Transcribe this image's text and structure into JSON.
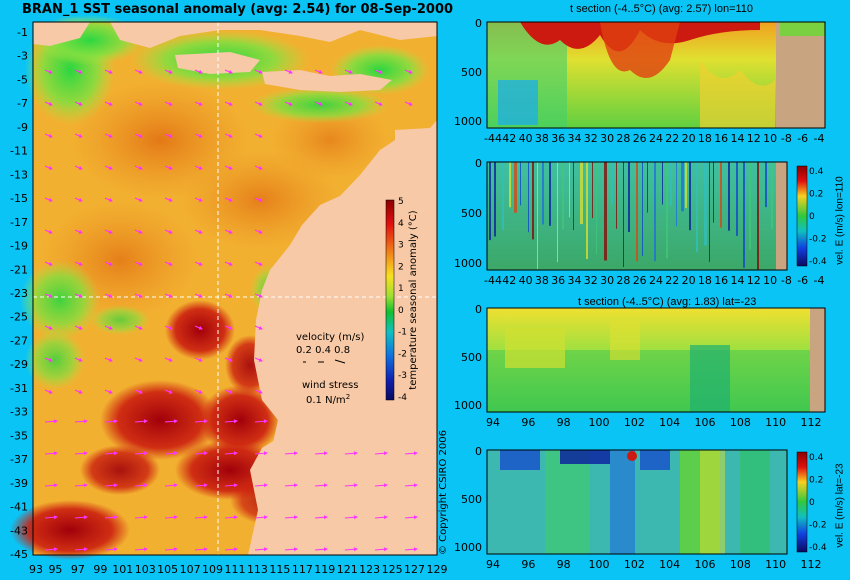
{
  "colors": {
    "background": "#0ac4f5",
    "land": "#f7c9a6",
    "land_section": "#c8a580",
    "arrows": "#ff33ff"
  },
  "chart_data": [
    {
      "type": "heatmap",
      "title": "BRAN_1  SST seasonal anomaly  (avg: 2.54) for 08-Sep-2000",
      "xticks": [
        "93",
        "95",
        "97",
        "99",
        "101",
        "103",
        "105",
        "107",
        "109",
        "111",
        "113",
        "115",
        "117",
        "119",
        "121",
        "123",
        "125",
        "127",
        "129"
      ],
      "yticks": [
        "-1",
        "-3",
        "-5",
        "-7",
        "-9",
        "-11",
        "-13",
        "-15",
        "-17",
        "-19",
        "-21",
        "-23",
        "-25",
        "-27",
        "-29",
        "-31",
        "-33",
        "-35",
        "-37",
        "-39",
        "-41",
        "-43",
        "-45"
      ],
      "xlim": [
        93,
        130
      ],
      "ylim": [
        -45,
        0
      ],
      "colorbar": {
        "label": "temperature seasonal anomaly (°C)",
        "ticks": [
          "5",
          "4",
          "3",
          "2",
          "1",
          "0",
          "-1",
          "-2",
          "-3",
          "-4"
        ],
        "range": [
          -4,
          5
        ]
      },
      "velocity_legend": {
        "title": "velocity (m/s)",
        "values": "0.2 0.4 0.8"
      },
      "wind_legend": {
        "title": "wind stress",
        "value": "0.1 N/m",
        "exponent": "2"
      },
      "guides": {
        "lon": 110,
        "lat": -23
      },
      "copyright": "© Copyright CSIRO 2006"
    },
    {
      "type": "heatmap",
      "title": "t section (-4..5°C) (avg: 2.57) lon=110",
      "xticks": [
        "-44",
        "42",
        "40",
        "38",
        "36",
        "34",
        "32",
        "30",
        "28",
        "26",
        "24",
        "22",
        "20",
        "18",
        "16",
        "14",
        "12",
        "10",
        "-8",
        "-6",
        "-4"
      ],
      "yticks": [
        "0",
        "500",
        "1000"
      ]
    },
    {
      "type": "heatmap",
      "title": "",
      "xticks": [
        "-44",
        "42",
        "40",
        "38",
        "36",
        "34",
        "32",
        "30",
        "28",
        "26",
        "24",
        "22",
        "20",
        "18",
        "16",
        "14",
        "12",
        "10",
        "-8",
        "-6",
        "-4"
      ],
      "yticks": [
        "0",
        "500",
        "1000"
      ],
      "colorbar": {
        "label": "vel. E (m/s) lon=110",
        "ticks": [
          "0.4",
          "0.2",
          "0",
          "-0.2",
          "-0.4"
        ]
      }
    },
    {
      "type": "heatmap",
      "title": "t section (-4..5°C) (avg: 1.83) lat=-23",
      "xticks": [
        "94",
        "96",
        "98",
        "100",
        "102",
        "104",
        "106",
        "108",
        "110",
        "112"
      ],
      "yticks": [
        "0",
        "500",
        "1000"
      ]
    },
    {
      "type": "heatmap",
      "title": "",
      "xticks": [
        "94",
        "96",
        "98",
        "100",
        "102",
        "104",
        "106",
        "108",
        "110",
        "112"
      ],
      "yticks": [
        "0",
        "500",
        "1000"
      ],
      "colorbar": {
        "label": "vel. E (m/s) lat=-23",
        "ticks": [
          "0.4",
          "0.2",
          "0",
          "-0.2",
          "-0.4"
        ]
      }
    }
  ]
}
